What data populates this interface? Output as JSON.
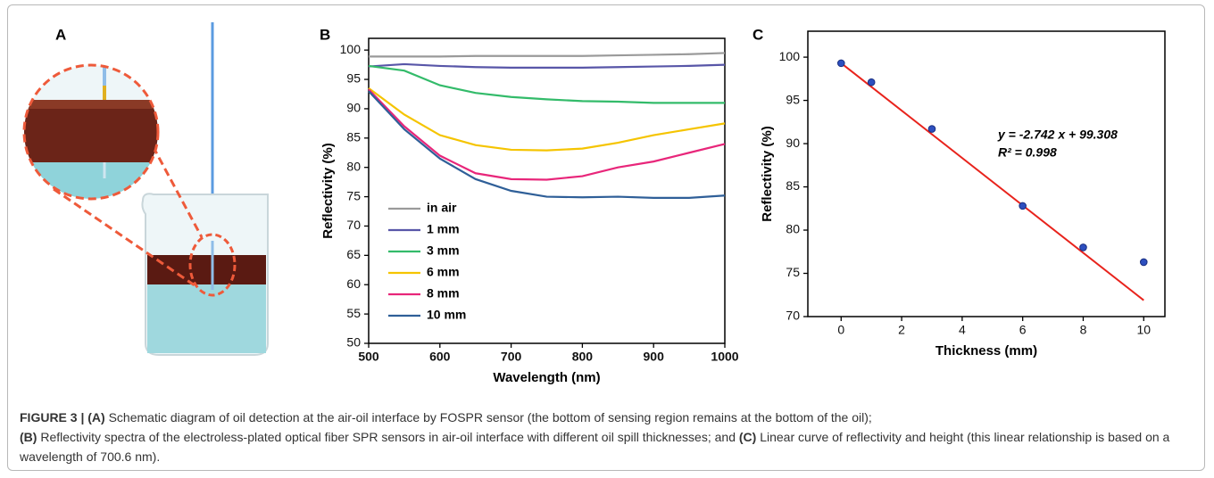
{
  "panel_labels": [
    "A",
    "B",
    "C"
  ],
  "chart_data": [
    {
      "type": "line",
      "xlabel": "Wavelength (nm)",
      "ylabel": "Reflectivity (%)",
      "x": [
        500,
        550,
        600,
        650,
        700,
        750,
        800,
        850,
        900,
        950,
        1000
      ],
      "xlim": [
        500,
        1000
      ],
      "xticks": [
        500,
        600,
        700,
        800,
        900,
        1000
      ],
      "ylim": [
        50,
        102
      ],
      "yticks": [
        50,
        55,
        60,
        65,
        70,
        75,
        80,
        85,
        90,
        95,
        100
      ],
      "legend": "lower left",
      "series": [
        {
          "name": "in air",
          "color": "#9a9a9a",
          "values": [
            98.9,
            98.9,
            98.9,
            99,
            99,
            99,
            99,
            99.1,
            99.2,
            99.3,
            99.5
          ]
        },
        {
          "name": "1 mm",
          "color": "#5856a8",
          "values": [
            97.2,
            97.6,
            97.3,
            97.1,
            97,
            97,
            97,
            97.1,
            97.2,
            97.3,
            97.5
          ]
        },
        {
          "name": "3 mm",
          "color": "#33bb6a",
          "values": [
            97.3,
            96.5,
            94,
            92.7,
            92,
            91.6,
            91.3,
            91.2,
            91,
            91,
            91
          ]
        },
        {
          "name": "6 mm",
          "color": "#f5c400",
          "values": [
            93.5,
            89,
            85.5,
            83.8,
            83,
            82.9,
            83.2,
            84.2,
            85.5,
            86.5,
            87.5
          ]
        },
        {
          "name": "8 mm",
          "color": "#e8267a",
          "values": [
            93.3,
            87,
            82,
            79,
            78,
            77.9,
            78.5,
            80,
            81,
            82.5,
            84
          ]
        },
        {
          "name": "10 mm",
          "color": "#2f5f98",
          "values": [
            93,
            86.5,
            81.5,
            78,
            76,
            75,
            74.9,
            75,
            74.8,
            74.8,
            75.2
          ]
        }
      ]
    },
    {
      "type": "scatter",
      "xlabel": "Thickness (mm)",
      "ylabel": "Reflectivity (%)",
      "x": [
        0,
        1,
        3,
        6,
        8,
        10
      ],
      "values": [
        99.3,
        97.1,
        91.7,
        82.8,
        78,
        76.3
      ],
      "color": "#2d4fbf",
      "xlim": [
        -1.1,
        10.7
      ],
      "xticks": [
        0,
        2,
        4,
        6,
        8,
        10
      ],
      "ylim": [
        70,
        103
      ],
      "yticks": [
        70,
        75,
        80,
        85,
        90,
        95,
        100
      ],
      "fit": {
        "slope": -2.742,
        "intercept": 99.308,
        "color": "#e8231c",
        "equation": "y = -2.742 x + 99.308",
        "r2": "R² = 0.998"
      }
    }
  ],
  "caption": [
    "FIGURE 3 | (A)",
    " Schematic diagram of oil detection at the air-oil interface by FOSPR sensor (the bottom of sensing region remains at the bottom of the oil);",
    "(B)",
    " Reflectivity spectra of the electroless-plated optical fiber SPR sensors in air-oil interface with different oil spill thicknesses; and ",
    "(C)",
    " Linear curve of reflectivity and height (this linear relationship is based on a wavelength of 700.6 nm)."
  ]
}
